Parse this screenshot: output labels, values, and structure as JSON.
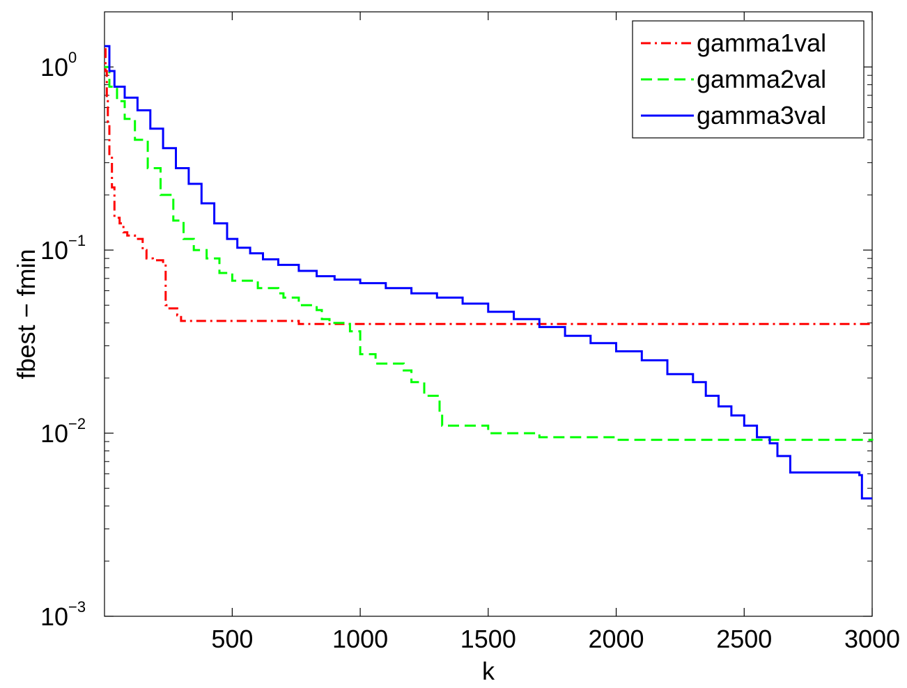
{
  "chart_data": {
    "type": "line",
    "xlabel": "k",
    "ylabel": "fbest − fmin",
    "xlim": [
      1,
      3000
    ],
    "ylim": [
      0.001,
      2
    ],
    "yscale": "log",
    "grid": false,
    "legend_position": "top-right",
    "xticks": [
      {
        "value": 500,
        "label": "500"
      },
      {
        "value": 1000,
        "label": "1000"
      },
      {
        "value": 1500,
        "label": "1500"
      },
      {
        "value": 2000,
        "label": "2000"
      },
      {
        "value": 2500,
        "label": "2500"
      },
      {
        "value": 3000,
        "label": "3000"
      }
    ],
    "yticks": [
      {
        "value": 1,
        "base": "10",
        "exp": "0"
      },
      {
        "value": 0.1,
        "base": "10",
        "exp": "−1"
      },
      {
        "value": 0.01,
        "base": "10",
        "exp": "−2"
      },
      {
        "value": 0.001,
        "base": "10",
        "exp": "−3"
      }
    ],
    "series": [
      {
        "name": "gamma1val",
        "color": "#ff0000",
        "dash": "dashdot",
        "x": [
          1,
          5,
          10,
          14,
          20,
          30,
          40,
          60,
          75,
          90,
          120,
          150,
          165,
          190,
          230,
          240,
          250,
          285,
          300,
          740,
          760,
          3000
        ],
        "y": [
          1.25,
          0.95,
          0.65,
          0.5,
          0.33,
          0.22,
          0.15,
          0.14,
          0.125,
          0.12,
          0.115,
          0.1,
          0.09,
          0.088,
          0.084,
          0.05,
          0.048,
          0.044,
          0.041,
          0.041,
          0.0395,
          0.0395
        ]
      },
      {
        "name": "gamma2val",
        "color": "#00ff00",
        "dash": "dashed",
        "x": [
          1,
          20,
          50,
          80,
          120,
          170,
          220,
          270,
          310,
          350,
          400,
          450,
          500,
          600,
          680,
          700,
          760,
          830,
          850,
          880,
          960,
          1000,
          1060,
          1170,
          1200,
          1250,
          1310,
          1320,
          1500,
          1700,
          2000,
          3000
        ],
        "y": [
          1.0,
          0.78,
          0.65,
          0.52,
          0.4,
          0.28,
          0.2,
          0.145,
          0.115,
          0.1,
          0.09,
          0.075,
          0.068,
          0.062,
          0.058,
          0.055,
          0.05,
          0.047,
          0.042,
          0.04,
          0.036,
          0.027,
          0.024,
          0.022,
          0.019,
          0.016,
          0.013,
          0.011,
          0.01,
          0.0095,
          0.0092,
          0.0091
        ]
      },
      {
        "name": "gamma3val",
        "color": "#0000ff",
        "dash": "solid",
        "x": [
          1,
          20,
          40,
          80,
          130,
          180,
          230,
          280,
          330,
          380,
          430,
          480,
          520,
          570,
          620,
          680,
          760,
          830,
          900,
          1000,
          1100,
          1200,
          1300,
          1400,
          1500,
          1600,
          1700,
          1800,
          1900,
          2000,
          2100,
          2200,
          2300,
          2350,
          2400,
          2450,
          2500,
          2550,
          2600,
          2630,
          2680,
          2950,
          2960,
          3000
        ],
        "y": [
          1.3,
          0.95,
          0.78,
          0.68,
          0.58,
          0.46,
          0.36,
          0.28,
          0.23,
          0.18,
          0.14,
          0.115,
          0.103,
          0.096,
          0.089,
          0.083,
          0.077,
          0.072,
          0.069,
          0.066,
          0.062,
          0.058,
          0.055,
          0.051,
          0.046,
          0.042,
          0.038,
          0.034,
          0.031,
          0.028,
          0.025,
          0.021,
          0.019,
          0.016,
          0.014,
          0.0125,
          0.011,
          0.0095,
          0.0088,
          0.0075,
          0.0061,
          0.0059,
          0.0044,
          0.0044
        ]
      }
    ]
  }
}
